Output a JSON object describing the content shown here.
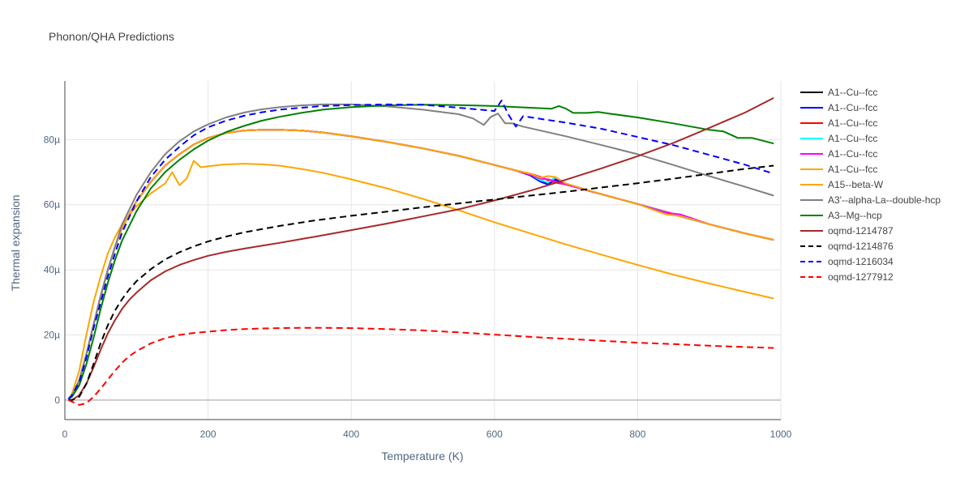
{
  "chart_data": {
    "type": "line",
    "title": "Phonon/QHA Predictions",
    "xlabel": "Temperature (K)",
    "ylabel": "Thermal expansion",
    "xlim": [
      0,
      1000
    ],
    "ylim": [
      -6,
      98
    ],
    "x_ticks": [
      0,
      200,
      400,
      600,
      800,
      1000
    ],
    "y_ticks": [
      0,
      20,
      40,
      60,
      80
    ],
    "y_tick_labels": [
      "0",
      "20µ",
      "40µ",
      "60µ",
      "80µ"
    ],
    "grid": true,
    "legend_position": "right",
    "series": [
      {
        "name": "A1--Cu--fcc",
        "color": "#000000",
        "dash": "solid",
        "x": [
          5,
          10,
          20,
          30,
          40,
          50,
          60,
          70,
          80,
          100,
          120,
          140,
          160,
          180,
          200,
          225,
          250,
          275,
          300,
          330,
          360,
          400,
          450,
          500,
          550,
          600,
          630,
          650,
          665,
          675,
          685,
          700,
          750,
          800,
          850,
          900,
          950,
          990
        ],
        "y": [
          0.3,
          1.5,
          6,
          14,
          23,
          32,
          40,
          47,
          53,
          61,
          67,
          72,
          75.5,
          78.5,
          80.5,
          82,
          82.8,
          83,
          83,
          82.8,
          82.2,
          81,
          79.3,
          77.3,
          75,
          72.2,
          70.5,
          69.2,
          67.5,
          66.5,
          67.5,
          66.2,
          63.2,
          60.2,
          57,
          54,
          51.2,
          49.2
        ]
      },
      {
        "name": "A1--Cu--fcc",
        "color": "#0000ff",
        "dash": "solid",
        "x": [
          5,
          10,
          20,
          30,
          40,
          50,
          60,
          70,
          80,
          100,
          120,
          140,
          160,
          180,
          200,
          225,
          250,
          275,
          300,
          330,
          360,
          400,
          450,
          500,
          550,
          600,
          630,
          650,
          665,
          675,
          685,
          700,
          750,
          800,
          850,
          900,
          950,
          990
        ],
        "y": [
          0.3,
          1.5,
          6,
          14,
          23,
          32,
          40,
          47,
          53,
          61,
          67,
          72,
          75.5,
          78.5,
          80.5,
          82,
          82.8,
          83,
          83,
          82.8,
          82.2,
          81,
          79.3,
          77.3,
          75,
          72.2,
          70.5,
          69,
          67,
          66.2,
          67.8,
          66.3,
          63.2,
          60.2,
          57,
          54,
          51.2,
          49.2
        ]
      },
      {
        "name": "A1--Cu--fcc",
        "color": "#ff0000",
        "dash": "solid",
        "x": [
          5,
          10,
          20,
          30,
          40,
          50,
          60,
          70,
          80,
          100,
          120,
          140,
          160,
          180,
          200,
          225,
          250,
          275,
          300,
          330,
          360,
          400,
          450,
          500,
          550,
          600,
          630,
          650,
          665,
          675,
          685,
          700,
          750,
          800,
          850,
          900,
          950,
          990
        ],
        "y": [
          0.3,
          1.5,
          6,
          14,
          23,
          32,
          40,
          47,
          53,
          61,
          67,
          72,
          75.5,
          78.5,
          80.5,
          82,
          82.8,
          83,
          83,
          82.8,
          82.2,
          81,
          79.3,
          77.3,
          75,
          72.2,
          70.5,
          69.5,
          68.5,
          67.5,
          66.8,
          66.2,
          63.2,
          60.2,
          57.2,
          54,
          51.2,
          49.2
        ]
      },
      {
        "name": "A1--Cu--fcc",
        "color": "#00ffff",
        "dash": "solid",
        "x": [
          5,
          10,
          20,
          30,
          40,
          50,
          60,
          70,
          80,
          100,
          120,
          140,
          160,
          180,
          200,
          225,
          250,
          275,
          300,
          330,
          360,
          400,
          450,
          500,
          550,
          600,
          630,
          650,
          665,
          675,
          685,
          700,
          750,
          800,
          850,
          900,
          950,
          990
        ],
        "y": [
          0.3,
          1.5,
          6,
          14,
          23,
          32,
          40,
          47,
          53,
          61,
          67,
          72,
          75.5,
          78.5,
          80.5,
          82,
          82.8,
          83,
          83,
          82.8,
          82.2,
          81,
          79.3,
          77.3,
          75,
          72.2,
          70.5,
          69.3,
          67.5,
          66.8,
          68.5,
          66.5,
          63.2,
          60.2,
          57,
          54,
          51.2,
          49.2
        ]
      },
      {
        "name": "A1--Cu--fcc",
        "color": "#ff00ff",
        "dash": "solid",
        "x": [
          5,
          10,
          20,
          30,
          40,
          50,
          60,
          70,
          80,
          100,
          120,
          140,
          160,
          180,
          200,
          225,
          250,
          275,
          300,
          330,
          360,
          400,
          450,
          500,
          550,
          600,
          630,
          650,
          665,
          675,
          685,
          700,
          750,
          800,
          840,
          860,
          900,
          950,
          990
        ],
        "y": [
          0.3,
          1.5,
          6,
          14,
          23,
          32,
          40,
          47,
          53,
          61,
          67,
          72,
          75.5,
          78.5,
          80.5,
          82,
          82.8,
          83,
          83,
          82.8,
          82.2,
          81,
          79.3,
          77.3,
          75,
          72.2,
          70.5,
          69.2,
          68,
          67.8,
          67.2,
          66.2,
          63.2,
          60.2,
          57.5,
          57,
          54,
          51.2,
          49.2
        ]
      },
      {
        "name": "A1--Cu--fcc",
        "color": "#ffa500",
        "dash": "solid",
        "x": [
          5,
          10,
          20,
          30,
          40,
          50,
          60,
          70,
          80,
          100,
          120,
          140,
          160,
          180,
          200,
          225,
          250,
          275,
          300,
          330,
          360,
          400,
          450,
          500,
          550,
          600,
          630,
          650,
          665,
          675,
          685,
          700,
          750,
          800,
          840,
          860,
          900,
          950,
          990
        ],
        "y": [
          0.3,
          1.5,
          6,
          14,
          23,
          32,
          40,
          47,
          53,
          61,
          67,
          72,
          75.5,
          78.5,
          80.5,
          82,
          82.8,
          83,
          83,
          82.8,
          82.2,
          81,
          79.3,
          77.3,
          75,
          72.2,
          70.5,
          69.5,
          68.3,
          68.8,
          68.5,
          66.5,
          63.2,
          60.2,
          57,
          56.5,
          54,
          51.2,
          49.2
        ]
      },
      {
        "name": "A15--beta-W",
        "color": "#ffa500",
        "dash": "solid",
        "x": [
          5,
          10,
          20,
          30,
          40,
          50,
          60,
          70,
          80,
          100,
          120,
          140,
          150,
          160,
          170,
          180,
          190,
          200,
          220,
          250,
          275,
          300,
          330,
          360,
          400,
          450,
          500,
          550,
          600,
          650,
          700,
          750,
          800,
          850,
          900,
          950,
          990
        ],
        "y": [
          0.3,
          2,
          9,
          20,
          30,
          38,
          45,
          50,
          54,
          59.5,
          63.5,
          66.5,
          70,
          66,
          68,
          73.5,
          71.5,
          71.8,
          72.3,
          72.6,
          72.4,
          72,
          71,
          69.8,
          67.8,
          65,
          61.8,
          58.3,
          54.6,
          51.2,
          47.8,
          44.6,
          41.5,
          38.5,
          35.8,
          33.2,
          31.2
        ]
      },
      {
        "name": "A3'--alpha-La--double-hcp",
        "color": "#808080",
        "dash": "solid",
        "x": [
          5,
          10,
          20,
          30,
          40,
          50,
          60,
          70,
          80,
          100,
          120,
          140,
          160,
          180,
          200,
          225,
          250,
          275,
          300,
          330,
          360,
          400,
          450,
          500,
          550,
          570,
          585,
          595,
          605,
          615,
          625,
          640,
          660,
          700,
          750,
          800,
          850,
          900,
          950,
          990
        ],
        "y": [
          0.3,
          1.5,
          6,
          14,
          23,
          32,
          40,
          47,
          54,
          63,
          70,
          75.5,
          79.5,
          82.5,
          84.7,
          86.8,
          88.3,
          89.3,
          90,
          90.5,
          90.8,
          90.8,
          90.2,
          89.2,
          87.8,
          86.5,
          84.5,
          87,
          88,
          85,
          85,
          84,
          83,
          81,
          78.3,
          75.5,
          72.2,
          68.8,
          65.5,
          62.8
        ]
      },
      {
        "name": "A3--Mg--hcp",
        "color": "#008000",
        "dash": "solid",
        "x": [
          5,
          10,
          20,
          30,
          40,
          50,
          60,
          70,
          80,
          100,
          120,
          140,
          160,
          180,
          200,
          225,
          250,
          275,
          300,
          330,
          360,
          400,
          450,
          500,
          550,
          600,
          650,
          680,
          690,
          700,
          710,
          730,
          745,
          760,
          800,
          850,
          900,
          920,
          940,
          960,
          990
        ],
        "y": [
          0.3,
          1,
          4.5,
          11,
          19,
          28,
          36,
          43,
          49,
          58,
          65,
          70,
          73.8,
          77,
          79.7,
          82.3,
          84.2,
          85.8,
          87,
          88.2,
          89.2,
          90,
          90.5,
          90.7,
          90.6,
          90.3,
          89.8,
          89.5,
          90.3,
          89.5,
          88.2,
          88.2,
          88.5,
          88,
          86.8,
          85,
          83,
          82.5,
          80.5,
          80.5,
          78.8
        ]
      },
      {
        "name": "oqmd-1214787",
        "color": "#a52a2a",
        "dash": "solid",
        "x": [
          5,
          10,
          20,
          30,
          40,
          50,
          60,
          70,
          80,
          90,
          100,
          120,
          140,
          160,
          180,
          200,
          225,
          250,
          275,
          300,
          350,
          400,
          450,
          500,
          550,
          600,
          650,
          700,
          750,
          800,
          850,
          900,
          950,
          990
        ],
        "y": [
          0,
          0,
          1.5,
          5,
          10,
          15.5,
          20.5,
          24.5,
          28,
          30.8,
          33,
          36.8,
          39.5,
          41.5,
          43,
          44.3,
          45.5,
          46.5,
          47.4,
          48.3,
          50.2,
          52.2,
          54.2,
          56.4,
          58.6,
          61.3,
          64.3,
          67.7,
          71.2,
          74.9,
          79,
          83.6,
          88.3,
          92.8
        ]
      },
      {
        "name": "oqmd-1214876",
        "color": "#000000",
        "dash": "dash",
        "x": [
          5,
          10,
          20,
          30,
          40,
          50,
          60,
          70,
          80,
          90,
          100,
          120,
          140,
          160,
          180,
          200,
          225,
          250,
          275,
          300,
          350,
          400,
          450,
          500,
          550,
          600,
          650,
          700,
          750,
          800,
          850,
          900,
          950,
          990
        ],
        "y": [
          0,
          0,
          1,
          5,
          11,
          17.5,
          23,
          27.5,
          31,
          34,
          36.5,
          40.2,
          43.2,
          45.4,
          47.2,
          48.7,
          50.2,
          51.5,
          52.5,
          53.5,
          55.2,
          56.6,
          57.9,
          59.2,
          60.4,
          61.6,
          62.8,
          64,
          65.3,
          66.6,
          68,
          69.5,
          71,
          72
        ]
      },
      {
        "name": "oqmd-1216034",
        "color": "#0000ff",
        "dash": "dash",
        "x": [
          5,
          10,
          20,
          30,
          40,
          50,
          60,
          70,
          80,
          100,
          120,
          140,
          160,
          180,
          200,
          225,
          250,
          275,
          300,
          330,
          360,
          400,
          450,
          500,
          550,
          600,
          610,
          620,
          630,
          640,
          660,
          700,
          750,
          800,
          850,
          900,
          950,
          990
        ],
        "y": [
          0.3,
          1.5,
          5.5,
          13,
          22,
          30,
          38,
          45,
          51.5,
          61,
          68.5,
          73.8,
          77.8,
          81.3,
          83.8,
          85.8,
          87.3,
          88.4,
          89.2,
          89.8,
          90.3,
          90.6,
          90.8,
          90.7,
          89.8,
          88.8,
          92,
          87.5,
          84,
          87.2,
          86.5,
          85.2,
          83.3,
          80.8,
          78.3,
          75.3,
          72.3,
          69.5
        ]
      },
      {
        "name": "oqmd-1277912",
        "color": "#ff0000",
        "dash": "dash",
        "x": [
          5,
          10,
          20,
          30,
          40,
          50,
          60,
          70,
          80,
          90,
          100,
          120,
          140,
          160,
          180,
          200,
          225,
          250,
          275,
          300,
          330,
          360,
          400,
          450,
          500,
          550,
          600,
          650,
          700,
          750,
          800,
          850,
          900,
          950,
          990
        ],
        "y": [
          0,
          -0.5,
          -1.5,
          -1,
          1,
          3.5,
          6.3,
          9,
          11.5,
          13.5,
          15,
          17.4,
          19,
          20,
          20.6,
          21,
          21.5,
          21.8,
          22,
          22.1,
          22.2,
          22.2,
          22.1,
          21.8,
          21.4,
          20.8,
          20.1,
          19.4,
          18.8,
          18.2,
          17.6,
          17.2,
          16.7,
          16.3,
          16
        ]
      }
    ]
  }
}
